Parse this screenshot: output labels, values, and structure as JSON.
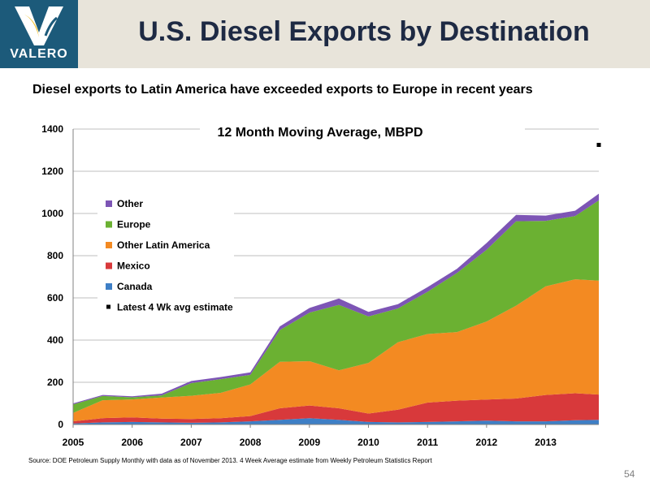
{
  "header": {
    "title": "U.S. Diesel Exports by Destination",
    "logo_text": "VALERO",
    "subtitle": "Diesel exports to Latin America have exceeded exports to Europe in recent years"
  },
  "footer": {
    "source": "Source: DOE Petroleum Supply Monthly with data as of November 2013. 4 Week Average estimate from Weekly Petroleum Statistics Report",
    "page_number": "54"
  },
  "colors": {
    "header_band": "#e8e4da",
    "logo_bg": "#1c5a7a",
    "canada": "#3e7fc6",
    "mexico": "#d8393b",
    "other_latin_america": "#f38a22",
    "europe": "#6bb132",
    "other": "#7d55b5",
    "estimate": "#000000"
  },
  "chart_data": {
    "type": "area",
    "title": "12 Month Moving Average, MBPD",
    "xlabel": "",
    "ylabel": "",
    "ylim": [
      0,
      1400
    ],
    "xlim": [
      2005,
      2013.9
    ],
    "x_ticks": [
      "2005",
      "2006",
      "2007",
      "2008",
      "2009",
      "2010",
      "2011",
      "2012",
      "2013"
    ],
    "y_ticks": [
      "0",
      "200",
      "400",
      "600",
      "800",
      "1000",
      "1200",
      "1400"
    ],
    "grid": true,
    "legend_position": "left",
    "x": [
      2005,
      2005.5,
      2006,
      2006.5,
      2007,
      2007.5,
      2008,
      2008.5,
      2009,
      2009.5,
      2010,
      2010.5,
      2011,
      2011.5,
      2012,
      2012.5,
      2013,
      2013.5,
      2013.9
    ],
    "series": [
      {
        "name": "Canada",
        "color": "#3e7fc6",
        "values": [
          5,
          10,
          12,
          10,
          8,
          10,
          15,
          22,
          30,
          22,
          12,
          10,
          12,
          15,
          18,
          15,
          15,
          20,
          22
        ]
      },
      {
        "name": "Mexico",
        "color": "#d8393b",
        "values": [
          10,
          20,
          22,
          18,
          18,
          20,
          25,
          55,
          60,
          55,
          40,
          60,
          92,
          98,
          100,
          108,
          125,
          128,
          120
        ]
      },
      {
        "name": "Other Latin America",
        "color": "#f38a22",
        "values": [
          40,
          85,
          85,
          100,
          110,
          120,
          150,
          220,
          210,
          180,
          240,
          320,
          325,
          325,
          370,
          440,
          515,
          540,
          540
        ]
      },
      {
        "name": "Europe",
        "color": "#6bb132",
        "values": [
          40,
          20,
          10,
          10,
          60,
          65,
          45,
          150,
          230,
          310,
          220,
          160,
          200,
          280,
          340,
          400,
          310,
          300,
          380
        ]
      },
      {
        "name": "Other",
        "color": "#7d55b5",
        "values": [
          5,
          5,
          5,
          8,
          10,
          10,
          12,
          18,
          22,
          30,
          22,
          20,
          22,
          20,
          32,
          30,
          25,
          25,
          32
        ]
      }
    ],
    "estimate": {
      "name": "Latest 4 Wk avg estimate",
      "x": 2013.9,
      "y": 1325
    }
  }
}
